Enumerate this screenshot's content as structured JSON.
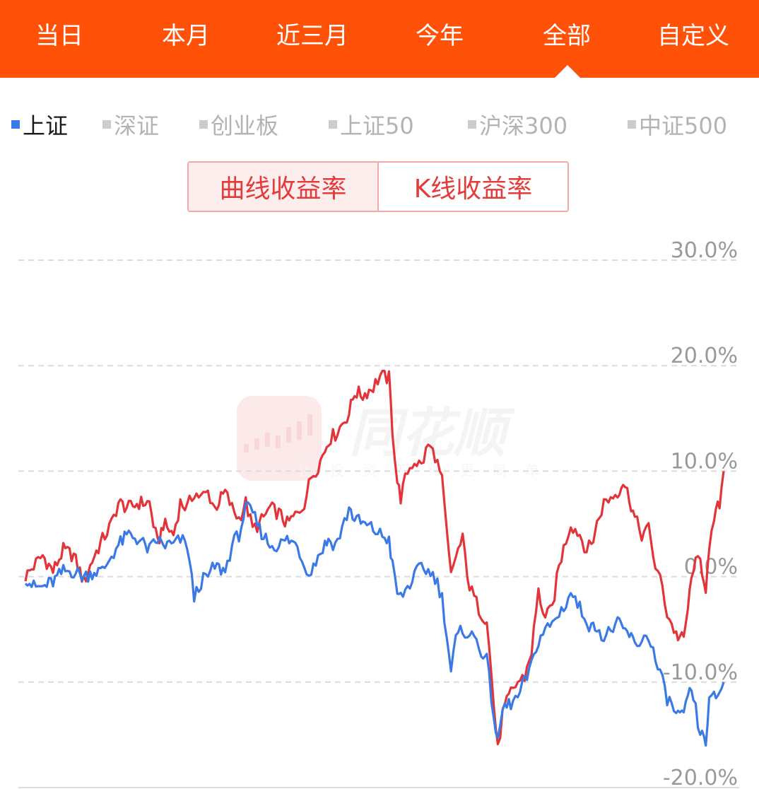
{
  "tabs": [
    {
      "label": "当日"
    },
    {
      "label": "本月"
    },
    {
      "label": "近三月"
    },
    {
      "label": "今年"
    },
    {
      "label": "全部"
    },
    {
      "label": "自定义"
    }
  ],
  "active_tab": "全部",
  "legend": [
    {
      "label": "上证",
      "active": true
    },
    {
      "label": "深证",
      "active": false
    },
    {
      "label": "创业板",
      "active": false
    },
    {
      "label": "上证50",
      "active": false
    },
    {
      "label": "沪深300",
      "active": false
    },
    {
      "label": "中证500",
      "active": false
    }
  ],
  "toggle": {
    "curve_label": "曲线收益率",
    "kline_label": "K线收益率",
    "active": "curve"
  },
  "colors": {
    "header": "#ff5208",
    "portfolio_line": "#e3343a",
    "index_line": "#3b7ae6",
    "grid": "#dcdcdc",
    "axis_text": "#999999"
  },
  "watermark": {
    "brand": "同花顺",
    "slogan": "让投资变得更简单"
  },
  "chart_data": {
    "type": "line",
    "ylim": [
      -20,
      30
    ],
    "yticks": [
      "30.0%",
      "20.0%",
      "10.0%",
      "0.0%",
      "-10.0%",
      "-20.0%"
    ],
    "ytick_values": [
      30,
      20,
      10,
      0,
      -10,
      -20
    ],
    "grid": "dashed",
    "x_count": 300,
    "series": [
      {
        "name": "",
        "color": "#e3343a",
        "points": [
          [
            0,
            0
          ],
          [
            12,
            1
          ],
          [
            25,
            2
          ],
          [
            40,
            0.5
          ],
          [
            55,
            2.5
          ],
          [
            70,
            2
          ],
          [
            85,
            -0.5
          ],
          [
            100,
            2
          ],
          [
            112,
            3.5
          ],
          [
            125,
            5
          ],
          [
            135,
            7
          ],
          [
            150,
            6.5
          ],
          [
            165,
            7
          ],
          [
            180,
            7
          ],
          [
            192,
            3
          ],
          [
            200,
            5
          ],
          [
            215,
            4
          ],
          [
            225,
            7
          ],
          [
            235,
            6.5
          ],
          [
            245,
            8
          ],
          [
            255,
            7.5
          ],
          [
            265,
            8
          ],
          [
            275,
            6.5
          ],
          [
            290,
            8
          ],
          [
            300,
            6.5
          ],
          [
            310,
            5.5
          ],
          [
            320,
            7
          ],
          [
            330,
            4.5
          ],
          [
            340,
            5
          ],
          [
            355,
            6.5
          ],
          [
            368,
            6
          ],
          [
            380,
            5
          ],
          [
            395,
            6
          ],
          [
            405,
            7
          ],
          [
            415,
            9.5
          ],
          [
            425,
            10.5
          ],
          [
            435,
            12
          ],
          [
            440,
            13
          ],
          [
            450,
            13.5
          ],
          [
            460,
            14.5
          ],
          [
            470,
            15.5
          ],
          [
            478,
            17.5
          ],
          [
            490,
            17.2
          ],
          [
            505,
            18
          ],
          [
            515,
            19
          ],
          [
            528,
            18.8
          ],
          [
            533,
            14
          ],
          [
            540,
            9
          ],
          [
            545,
            7.5
          ],
          [
            555,
            10
          ],
          [
            565,
            11
          ],
          [
            575,
            10.5
          ],
          [
            585,
            12.5
          ],
          [
            595,
            11.5
          ],
          [
            605,
            9
          ],
          [
            612,
            4
          ],
          [
            618,
            0
          ],
          [
            625,
            2
          ],
          [
            635,
            3.5
          ],
          [
            645,
            -1
          ],
          [
            655,
            -2.5
          ],
          [
            662,
            -3.5
          ],
          [
            670,
            -4
          ],
          [
            680,
            -12
          ],
          [
            686,
            -16.5
          ],
          [
            693,
            -13
          ],
          [
            705,
            -11
          ],
          [
            715,
            -10
          ],
          [
            725,
            -9.5
          ],
          [
            735,
            -7
          ],
          [
            745,
            -1.5
          ],
          [
            755,
            -4
          ],
          [
            765,
            -3
          ],
          [
            775,
            1
          ],
          [
            785,
            3.5
          ],
          [
            792,
            5
          ],
          [
            805,
            4
          ],
          [
            815,
            2.5
          ],
          [
            822,
            3
          ],
          [
            830,
            5
          ],
          [
            840,
            7
          ],
          [
            850,
            7.5
          ],
          [
            860,
            8
          ],
          [
            868,
            9
          ],
          [
            877,
            7.5
          ],
          [
            885,
            5.5
          ],
          [
            895,
            4
          ],
          [
            905,
            4.5
          ],
          [
            915,
            1
          ],
          [
            925,
            -1
          ],
          [
            932,
            -3.5
          ],
          [
            945,
            -5.5
          ],
          [
            956,
            -6
          ],
          [
            962,
            -3
          ],
          [
            970,
            1
          ],
          [
            980,
            1.5
          ],
          [
            988,
            -1
          ],
          [
            993,
            2
          ],
          [
            1000,
            5.5
          ],
          [
            1008,
            7
          ],
          [
            1014,
            10
          ]
        ]
      },
      {
        "name": "上证",
        "color": "#3b7ae6",
        "points": [
          [
            0,
            0
          ],
          [
            12,
            -1
          ],
          [
            25,
            -1
          ],
          [
            40,
            -0.5
          ],
          [
            55,
            0.5
          ],
          [
            70,
            0.5
          ],
          [
            85,
            0
          ],
          [
            100,
            0.5
          ],
          [
            112,
            0.5
          ],
          [
            125,
            2
          ],
          [
            135,
            3
          ],
          [
            150,
            4
          ],
          [
            165,
            3.5
          ],
          [
            180,
            2.5
          ],
          [
            192,
            3.5
          ],
          [
            200,
            3
          ],
          [
            215,
            3
          ],
          [
            225,
            3.5
          ],
          [
            235,
            3
          ],
          [
            245,
            -2
          ],
          [
            255,
            -0.5
          ],
          [
            265,
            0
          ],
          [
            275,
            1
          ],
          [
            290,
            0.5
          ],
          [
            300,
            3
          ],
          [
            310,
            4
          ],
          [
            320,
            6.5
          ],
          [
            330,
            6
          ],
          [
            340,
            4.5
          ],
          [
            355,
            3
          ],
          [
            368,
            3
          ],
          [
            380,
            3.5
          ],
          [
            395,
            3
          ],
          [
            405,
            1
          ],
          [
            415,
            0.5
          ],
          [
            425,
            2
          ],
          [
            435,
            3
          ],
          [
            440,
            3.5
          ],
          [
            450,
            3
          ],
          [
            460,
            4.5
          ],
          [
            470,
            6.5
          ],
          [
            478,
            5.5
          ],
          [
            490,
            5
          ],
          [
            505,
            4.5
          ],
          [
            515,
            4
          ],
          [
            528,
            3.5
          ],
          [
            533,
            1
          ],
          [
            540,
            -1.5
          ],
          [
            545,
            -2
          ],
          [
            555,
            -1
          ],
          [
            565,
            0
          ],
          [
            575,
            1
          ],
          [
            585,
            0.5
          ],
          [
            595,
            0
          ],
          [
            605,
            -2
          ],
          [
            612,
            -5.5
          ],
          [
            618,
            -9
          ],
          [
            625,
            -6
          ],
          [
            635,
            -5
          ],
          [
            645,
            -5.5
          ],
          [
            655,
            -6
          ],
          [
            662,
            -7
          ],
          [
            670,
            -8
          ],
          [
            680,
            -13
          ],
          [
            686,
            -16
          ],
          [
            693,
            -12.5
          ],
          [
            705,
            -12
          ],
          [
            715,
            -11.5
          ],
          [
            725,
            -10
          ],
          [
            735,
            -8.5
          ],
          [
            745,
            -6
          ],
          [
            755,
            -5
          ],
          [
            765,
            -4.5
          ],
          [
            775,
            -3.5
          ],
          [
            785,
            -2.5
          ],
          [
            792,
            -1.5
          ],
          [
            805,
            -3
          ],
          [
            815,
            -4
          ],
          [
            822,
            -5
          ],
          [
            830,
            -4.5
          ],
          [
            840,
            -6
          ],
          [
            850,
            -5
          ],
          [
            860,
            -4.5
          ],
          [
            868,
            -5
          ],
          [
            877,
            -5.5
          ],
          [
            885,
            -6.5
          ],
          [
            895,
            -6
          ],
          [
            905,
            -5.5
          ],
          [
            915,
            -8
          ],
          [
            925,
            -10
          ],
          [
            932,
            -11.5
          ],
          [
            945,
            -13
          ],
          [
            956,
            -13.5
          ],
          [
            962,
            -11
          ],
          [
            970,
            -11.5
          ],
          [
            980,
            -15
          ],
          [
            988,
            -15.5
          ],
          [
            993,
            -12
          ],
          [
            1000,
            -11.5
          ],
          [
            1008,
            -11
          ],
          [
            1014,
            -10
          ]
        ]
      }
    ]
  }
}
